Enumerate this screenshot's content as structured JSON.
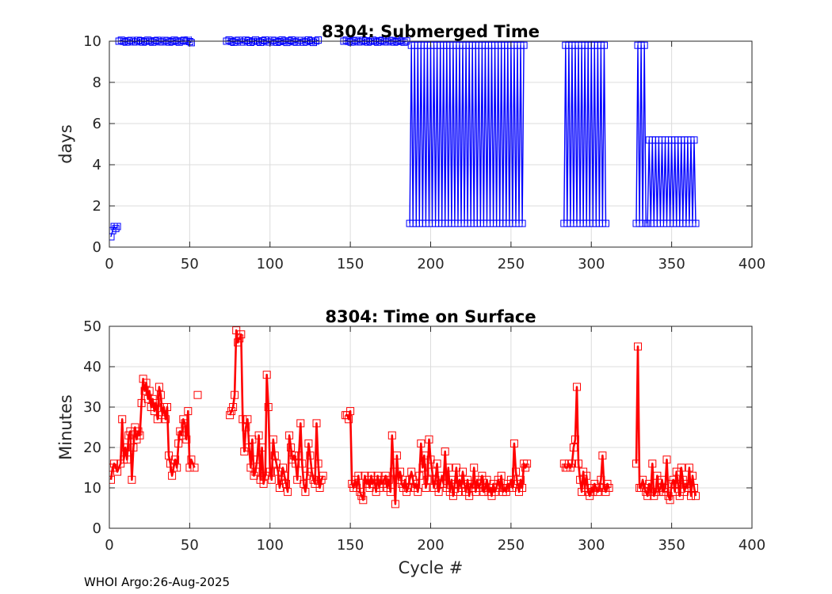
{
  "footer": "WHOI Argo:26-Aug-2025",
  "chart_data": [
    {
      "type": "line",
      "title": "8304: Submerged Time",
      "xlabel": "",
      "ylabel": "days",
      "xlim": [
        0,
        400
      ],
      "ylim": [
        0,
        10
      ],
      "xticks": [
        0,
        50,
        100,
        150,
        200,
        250,
        300,
        350,
        400
      ],
      "yticks": [
        0,
        2,
        4,
        6,
        8,
        10
      ],
      "grid": true,
      "marker": "square",
      "color": "#0000ff",
      "segments": [
        {
          "x": [
            1,
            2,
            3,
            4,
            5
          ],
          "y": [
            0.5,
            0.8,
            1.0,
            0.9,
            1.0
          ],
          "pattern": "none"
        },
        {
          "x": [
            6,
            47
          ],
          "y": [
            10.0,
            10.0
          ],
          "pattern": "flat",
          "step": 1.5,
          "jitter": 0.05
        },
        {
          "x": [
            48,
            51
          ],
          "y": [
            10.0,
            10.0
          ],
          "pattern": "flat",
          "step": 1,
          "jitter": 0.08
        },
        {
          "x": [
            73,
            130
          ],
          "y": [
            10.0,
            10.0
          ],
          "pattern": "flat",
          "step": 1.5,
          "jitter": 0.06
        },
        {
          "x": [
            146,
            186
          ],
          "y": [
            10.0,
            10.0
          ],
          "pattern": "flat",
          "step": 1.5,
          "jitter": 0.05
        },
        {
          "x": [
            187,
            258
          ],
          "y": [
            1.15,
            9.8
          ],
          "pattern": "alternate",
          "step": 1
        },
        {
          "x": [
            283,
            309
          ],
          "y": [
            1.15,
            9.8
          ],
          "pattern": "alternate",
          "step": 1
        },
        {
          "x": [
            328,
            334
          ],
          "y": [
            1.15,
            9.8
          ],
          "pattern": "alternate",
          "step": 1
        },
        {
          "x": [
            335,
            365
          ],
          "y": [
            1.15,
            5.2
          ],
          "pattern": "alternate",
          "step": 1
        }
      ]
    },
    {
      "type": "line",
      "title": "8304: Time on Surface",
      "xlabel": "Cycle #",
      "ylabel": "Minutes",
      "xlim": [
        0,
        400
      ],
      "ylim": [
        0,
        50
      ],
      "xticks": [
        0,
        50,
        100,
        150,
        200,
        250,
        300,
        350,
        400
      ],
      "yticks": [
        0,
        10,
        20,
        30,
        40,
        50
      ],
      "grid": true,
      "marker": "square",
      "color": "#ff0000",
      "segments": [
        {
          "x": [
            1,
            2,
            3,
            5,
            7,
            8,
            9,
            10,
            11,
            12,
            13,
            14,
            15,
            16,
            17,
            18,
            19,
            20,
            21,
            22,
            23,
            24,
            25,
            26,
            27,
            28,
            29,
            30,
            31,
            32,
            33,
            34,
            35,
            36,
            37,
            38,
            39,
            40,
            41,
            42,
            43,
            44,
            45,
            46,
            47,
            48,
            49,
            50,
            51,
            53
          ],
          "y": [
            12,
            15,
            16,
            14,
            16,
            27,
            17,
            20,
            17,
            23,
            24,
            12,
            20,
            25,
            22,
            24,
            23,
            31,
            37,
            34,
            36,
            32,
            34,
            30,
            32,
            29,
            31,
            27,
            35,
            33,
            28,
            30,
            27,
            30,
            18,
            16,
            13,
            15,
            17,
            15,
            21,
            24,
            23,
            27,
            26,
            22,
            29,
            15,
            17,
            15
          ]
        },
        {
          "x": [
            55
          ],
          "y": [
            33
          ]
        },
        {
          "x": [
            75,
            76,
            77,
            78,
            79,
            80,
            81,
            82,
            83,
            84,
            85,
            86,
            87,
            88,
            89,
            90,
            91,
            92,
            93,
            94,
            95,
            96,
            97,
            98,
            99,
            100,
            101,
            102,
            103,
            104,
            105,
            106,
            107,
            108,
            109,
            110,
            111,
            112,
            113,
            114,
            115,
            116,
            117,
            118,
            119,
            120,
            121,
            122,
            123,
            124,
            125,
            126,
            127,
            128,
            129,
            130,
            131,
            132,
            133
          ],
          "y": [
            28,
            29,
            30,
            33,
            49,
            46,
            47,
            48,
            27,
            19,
            25,
            27,
            20,
            15,
            22,
            13,
            14,
            17,
            23,
            12,
            20,
            11,
            13,
            38,
            30,
            14,
            12,
            22,
            18,
            16,
            14,
            10,
            12,
            15,
            13,
            11,
            9,
            23,
            20,
            17,
            18,
            16,
            12,
            18,
            26,
            16,
            11,
            9,
            13,
            21,
            18,
            14,
            12,
            11,
            26,
            16,
            10,
            12,
            13
          ]
        },
        {
          "x": [
            147,
            148,
            149,
            150,
            151,
            152,
            153,
            154,
            155,
            156,
            157,
            158,
            159,
            160,
            161,
            162,
            163,
            164,
            165,
            166,
            167,
            168,
            169,
            170,
            171,
            172,
            173,
            174,
            175,
            176,
            177,
            178,
            179,
            180,
            181,
            182,
            183,
            184,
            185,
            186,
            187,
            188,
            189,
            190,
            191,
            192,
            193,
            194,
            195,
            196,
            197,
            198,
            199,
            200,
            201,
            202,
            203,
            204,
            205,
            206,
            207,
            208,
            209,
            210,
            211,
            212,
            213,
            214,
            215,
            216,
            217,
            218,
            219,
            220,
            221,
            222,
            223,
            224,
            225,
            226,
            227,
            228,
            229,
            230,
            231,
            232,
            233,
            234,
            235,
            236,
            237,
            238,
            239,
            240,
            241,
            242,
            243,
            244,
            245,
            246,
            247,
            248,
            249,
            250,
            251,
            252,
            253,
            254,
            255,
            256,
            257,
            258,
            259,
            260
          ],
          "y": [
            28,
            28,
            27,
            29,
            11,
            10,
            12,
            10,
            13,
            9,
            8,
            7,
            13,
            11,
            12,
            10,
            13,
            11,
            12,
            9,
            13,
            10,
            12,
            11,
            12,
            13,
            10,
            12,
            9,
            23,
            14,
            6,
            18,
            12,
            14,
            11,
            10,
            12,
            9,
            10,
            12,
            14,
            12,
            10,
            11,
            9,
            13,
            21,
            15,
            18,
            10,
            12,
            22,
            17,
            14,
            10,
            12,
            16,
            9,
            11,
            13,
            11,
            19,
            10,
            15,
            9,
            12,
            8,
            11,
            15,
            9,
            12,
            10,
            14,
            11,
            9,
            12,
            8,
            11,
            10,
            15,
            9,
            12,
            10,
            11,
            13,
            9,
            10,
            12,
            9,
            10,
            8,
            11,
            9,
            10,
            12,
            10,
            13,
            9,
            10,
            9,
            11,
            10,
            12,
            10,
            21,
            14,
            11,
            9,
            12,
            10,
            16,
            15,
            16
          ]
        },
        {
          "x": [
            283,
            284,
            285,
            286,
            287,
            288,
            289,
            290,
            291,
            292,
            293,
            294,
            295,
            296,
            297,
            298,
            299,
            300,
            301,
            302,
            303,
            304,
            305,
            306,
            307,
            308,
            309,
            310,
            311
          ],
          "y": [
            16,
            15,
            15,
            16,
            15,
            16,
            20,
            22,
            35,
            16,
            12,
            9,
            14,
            10,
            13,
            9,
            8,
            10,
            9,
            11,
            10,
            9,
            10,
            12,
            18,
            10,
            9,
            11,
            10
          ]
        },
        {
          "x": [
            328,
            329,
            330,
            331,
            332,
            333,
            334,
            335,
            336,
            337,
            338,
            339,
            340,
            341,
            342,
            343,
            344,
            345,
            346,
            347,
            348,
            349,
            350,
            351,
            352,
            353,
            354,
            355,
            356,
            357,
            358,
            359,
            360,
            361,
            362,
            363,
            364,
            365
          ],
          "y": [
            16,
            45,
            10,
            10,
            12,
            10,
            9,
            8,
            11,
            9,
            16,
            8,
            9,
            13,
            9,
            10,
            12,
            9,
            10,
            17,
            8,
            7,
            11,
            12,
            9,
            14,
            11,
            8,
            15,
            12,
            9,
            11,
            10,
            15,
            8,
            13,
            10,
            8
          ]
        }
      ]
    }
  ]
}
